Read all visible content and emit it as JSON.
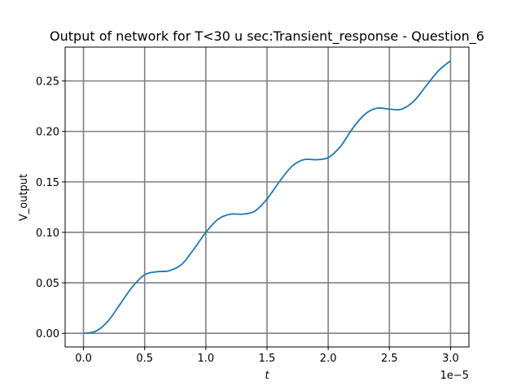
{
  "chart_data": {
    "type": "line",
    "title": "Output of network for T<30 u sec:Transient_response - Question_6",
    "xlabel": "t",
    "ylabel": "V_output",
    "x_offset_label": "1e−5",
    "xlim": [
      -0.15,
      3.15
    ],
    "ylim": [
      -0.0135,
      0.2835
    ],
    "x_ticks": [
      0.0,
      0.5,
      1.0,
      1.5,
      2.0,
      2.5,
      3.0
    ],
    "x_tick_labels": [
      "0.0",
      "0.5",
      "1.0",
      "1.5",
      "2.0",
      "2.5",
      "3.0"
    ],
    "y_ticks": [
      0.0,
      0.05,
      0.1,
      0.15,
      0.2,
      0.25
    ],
    "y_tick_labels": [
      "0.00",
      "0.05",
      "0.10",
      "0.15",
      "0.20",
      "0.25"
    ],
    "grid": true,
    "grid_color": "#808080",
    "series": [
      {
        "color": "#1f77b4",
        "x": [
          0.0,
          0.1,
          0.2,
          0.3,
          0.4,
          0.5,
          0.6,
          0.7,
          0.8,
          0.9,
          1.0,
          1.1,
          1.2,
          1.3,
          1.4,
          1.5,
          1.6,
          1.7,
          1.8,
          1.9,
          2.0,
          2.1,
          2.2,
          2.3,
          2.4,
          2.5,
          2.6,
          2.7,
          2.8,
          2.9,
          3.0
        ],
        "y": [
          0.0,
          0.002,
          0.012,
          0.029,
          0.046,
          0.058,
          0.061,
          0.062,
          0.068,
          0.083,
          0.1,
          0.113,
          0.118,
          0.118,
          0.121,
          0.133,
          0.15,
          0.165,
          0.172,
          0.172,
          0.174,
          0.185,
          0.203,
          0.217,
          0.223,
          0.222,
          0.222,
          0.23,
          0.245,
          0.26,
          0.27
        ]
      }
    ]
  }
}
